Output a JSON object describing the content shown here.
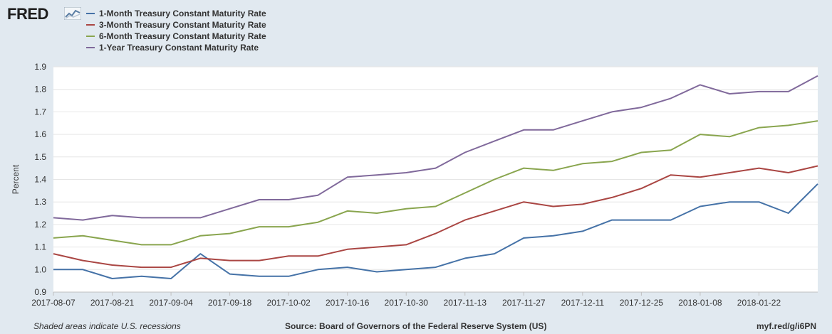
{
  "header": {
    "logo_text": "FRED",
    "logo_icon": "chart-line-icon"
  },
  "legend": [
    {
      "label": "1-Month Treasury Constant Maturity Rate",
      "color": "#4572a7"
    },
    {
      "label": "3-Month Treasury Constant Maturity Rate",
      "color": "#aa4643"
    },
    {
      "label": "6-Month Treasury Constant Maturity Rate",
      "color": "#89a54e"
    },
    {
      "label": "1-Year Treasury Constant Maturity Rate",
      "color": "#80699b"
    }
  ],
  "footer": {
    "recession_note": "Shaded areas indicate U.S. recessions",
    "source": "Source: Board of Governors of the Federal Reserve System (US)",
    "link": "myf.red/g/i6PN"
  },
  "chart_data": {
    "type": "line",
    "title": "",
    "xlabel": "",
    "ylabel": "Percent",
    "ylim": [
      0.9,
      1.9
    ],
    "yticks": [
      "0.9",
      "1.0",
      "1.1",
      "1.2",
      "1.3",
      "1.4",
      "1.5",
      "1.6",
      "1.7",
      "1.8",
      "1.9"
    ],
    "xticks": [
      "2017-08-07",
      "2017-08-21",
      "2017-09-04",
      "2017-09-18",
      "2017-10-02",
      "2017-10-16",
      "2017-10-30",
      "2017-11-13",
      "2017-11-27",
      "2017-12-11",
      "2017-12-25",
      "2018-01-08",
      "2018-01-22"
    ],
    "grid": true,
    "x": [
      "2017-08-07",
      "2017-08-14",
      "2017-08-21",
      "2017-08-28",
      "2017-09-04",
      "2017-09-11",
      "2017-09-18",
      "2017-09-25",
      "2017-10-02",
      "2017-10-09",
      "2017-10-16",
      "2017-10-23",
      "2017-10-30",
      "2017-11-06",
      "2017-11-13",
      "2017-11-20",
      "2017-11-27",
      "2017-12-04",
      "2017-12-11",
      "2017-12-18",
      "2017-12-25",
      "2018-01-01",
      "2018-01-08",
      "2018-01-15",
      "2018-01-22",
      "2018-01-29",
      "2018-02-05"
    ],
    "series": [
      {
        "name": "1-Month Treasury Constant Maturity Rate",
        "color": "#4572a7",
        "values": [
          1.0,
          1.0,
          0.96,
          0.97,
          0.96,
          1.07,
          0.98,
          0.97,
          0.97,
          1.0,
          1.01,
          0.99,
          1.0,
          1.01,
          1.05,
          1.07,
          1.14,
          1.15,
          1.17,
          1.22,
          1.22,
          1.22,
          1.28,
          1.3,
          1.3,
          1.25,
          1.38
        ]
      },
      {
        "name": "3-Month Treasury Constant Maturity Rate",
        "color": "#aa4643",
        "values": [
          1.07,
          1.04,
          1.02,
          1.01,
          1.01,
          1.05,
          1.04,
          1.04,
          1.06,
          1.06,
          1.09,
          1.1,
          1.11,
          1.16,
          1.22,
          1.26,
          1.3,
          1.28,
          1.29,
          1.32,
          1.36,
          1.42,
          1.41,
          1.43,
          1.45,
          1.43,
          1.46
        ]
      },
      {
        "name": "6-Month Treasury Constant Maturity Rate",
        "color": "#89a54e",
        "values": [
          1.14,
          1.15,
          1.13,
          1.11,
          1.11,
          1.15,
          1.16,
          1.19,
          1.19,
          1.21,
          1.26,
          1.25,
          1.27,
          1.28,
          1.34,
          1.4,
          1.45,
          1.44,
          1.47,
          1.48,
          1.52,
          1.53,
          1.6,
          1.59,
          1.63,
          1.64,
          1.66
        ]
      },
      {
        "name": "1-Year Treasury Constant Maturity Rate",
        "color": "#80699b",
        "values": [
          1.23,
          1.22,
          1.24,
          1.23,
          1.23,
          1.23,
          1.27,
          1.31,
          1.31,
          1.33,
          1.41,
          1.42,
          1.43,
          1.45,
          1.52,
          1.57,
          1.62,
          1.62,
          1.66,
          1.7,
          1.72,
          1.76,
          1.82,
          1.78,
          1.79,
          1.79,
          1.86
        ]
      }
    ]
  }
}
